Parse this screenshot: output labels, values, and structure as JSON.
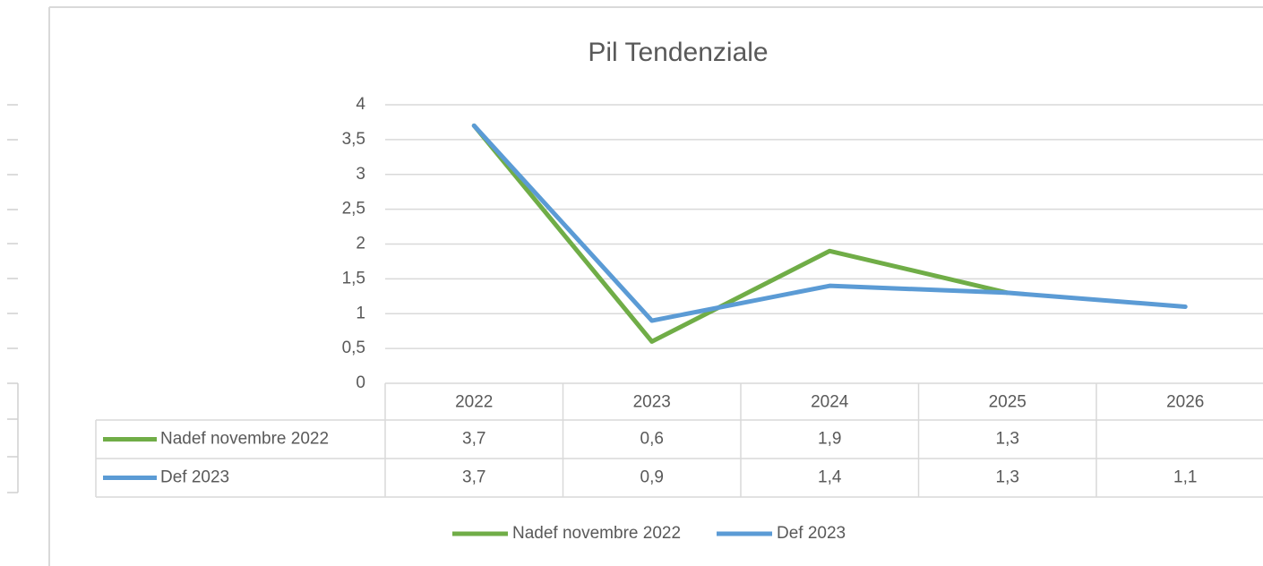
{
  "chart_data": {
    "type": "line",
    "title": "Pil Tendenziale",
    "categories": [
      "2022",
      "2023",
      "2024",
      "2025",
      "2026"
    ],
    "series": [
      {
        "name": "Nadef novembre 2022",
        "color": "#70ad47",
        "values": [
          3.7,
          0.6,
          1.9,
          1.3,
          null
        ],
        "value_labels": [
          "3,7",
          "0,6",
          "1,9",
          "1,3",
          null
        ]
      },
      {
        "name": "Def 2023",
        "color": "#5b9bd5",
        "values": [
          3.7,
          0.9,
          1.4,
          1.3,
          1.1
        ],
        "value_labels": [
          "3,7",
          "0,9",
          "1,4",
          "1,3",
          "1,1"
        ]
      }
    ],
    "ylim": [
      0,
      4
    ],
    "yticks": [
      0,
      {
        "value": 0.5,
        "label": "0,5"
      },
      1,
      {
        "value": 1.5,
        "label": "1,5"
      },
      2,
      {
        "value": 2.5,
        "label": "2,5"
      },
      3,
      {
        "value": 3.5,
        "label": "3,5"
      },
      4
    ],
    "grid": true,
    "legend": "bottom"
  }
}
